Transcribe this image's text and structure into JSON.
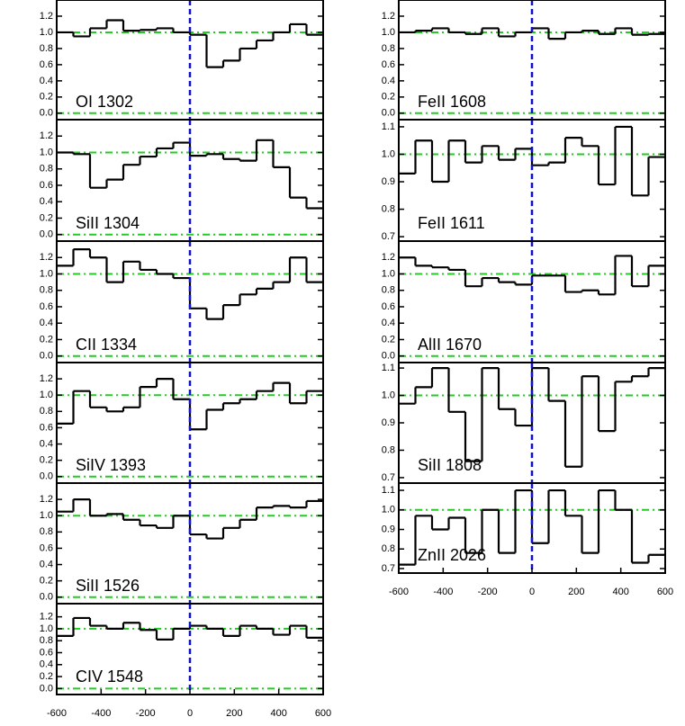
{
  "chart_data": [
    {
      "type": "step",
      "title": "OI 1302",
      "x": [
        -600,
        -525,
        -450,
        -375,
        -300,
        -225,
        -150,
        -75,
        0,
        75,
        150,
        225,
        300,
        375,
        450,
        525
      ],
      "values": [
        1.0,
        0.95,
        1.05,
        1.15,
        1.02,
        1.03,
        1.05,
        1.0,
        0.97,
        0.57,
        0.65,
        0.8,
        0.9,
        1.0,
        1.1,
        0.97
      ],
      "color": "#000000",
      "xlim": [
        -600,
        600
      ],
      "ylim": [
        -0.08,
        1.4
      ],
      "yticks": [
        {
          "value": 0,
          "label": "0.0"
        },
        0.2,
        0.4,
        0.6,
        0.8,
        {
          "value": 1,
          "label": "1.0"
        },
        1.2
      ],
      "reference_y": [
        0,
        1
      ],
      "reference_x": [
        0
      ],
      "reference_y_color": "#22cc22",
      "reference_x_color": "#1010cc"
    },
    {
      "type": "step",
      "title": "SiII 1304",
      "x": [
        -600,
        -525,
        -450,
        -375,
        -300,
        -225,
        -150,
        -75,
        0,
        75,
        150,
        225,
        300,
        375,
        450,
        525
      ],
      "values": [
        1.0,
        0.98,
        0.57,
        0.67,
        0.85,
        0.95,
        1.05,
        1.12,
        0.96,
        0.98,
        0.92,
        0.9,
        1.15,
        0.82,
        0.45,
        0.32
      ],
      "color": "#000000",
      "xlim": [
        -600,
        600
      ],
      "ylim": [
        -0.08,
        1.4
      ],
      "yticks": [
        {
          "value": 0,
          "label": "0.0"
        },
        0.2,
        0.4,
        0.6,
        0.8,
        {
          "value": 1,
          "label": "1.0"
        },
        1.2
      ],
      "reference_y": [
        0,
        1
      ],
      "reference_x": [
        0
      ],
      "reference_y_color": "#22cc22",
      "reference_x_color": "#1010cc"
    },
    {
      "type": "step",
      "title": "CII 1334",
      "x": [
        -600,
        -525,
        -450,
        -375,
        -300,
        -225,
        -150,
        -75,
        0,
        75,
        150,
        225,
        300,
        375,
        450,
        525
      ],
      "values": [
        1.1,
        1.3,
        1.2,
        0.9,
        1.15,
        1.05,
        1.0,
        0.95,
        0.58,
        0.45,
        0.62,
        0.75,
        0.82,
        0.9,
        1.2,
        0.9
      ],
      "color": "#000000",
      "xlim": [
        -600,
        600
      ],
      "ylim": [
        -0.08,
        1.4
      ],
      "yticks": [
        {
          "value": 0,
          "label": "0.0"
        },
        0.2,
        0.4,
        0.6,
        0.8,
        {
          "value": 1,
          "label": "1.0"
        },
        1.2
      ],
      "reference_y": [
        0,
        1
      ],
      "reference_x": [
        0
      ],
      "reference_y_color": "#22cc22",
      "reference_x_color": "#1010cc"
    },
    {
      "type": "step",
      "title": "SiIV 1393",
      "x": [
        -600,
        -525,
        -450,
        -375,
        -300,
        -225,
        -150,
        -75,
        0,
        75,
        150,
        225,
        300,
        375,
        450,
        525
      ],
      "values": [
        0.65,
        1.05,
        0.85,
        0.8,
        0.85,
        1.1,
        1.2,
        0.95,
        0.58,
        0.82,
        0.9,
        0.95,
        1.05,
        1.15,
        0.9,
        1.05
      ],
      "color": "#000000",
      "xlim": [
        -600,
        600
      ],
      "ylim": [
        -0.08,
        1.4
      ],
      "yticks": [
        {
          "value": 0,
          "label": "0.0"
        },
        0.2,
        0.4,
        0.6,
        0.8,
        {
          "value": 1,
          "label": "1.0"
        },
        1.2
      ],
      "reference_y": [
        0,
        1
      ],
      "reference_x": [
        0
      ],
      "reference_y_color": "#22cc22",
      "reference_x_color": "#1010cc"
    },
    {
      "type": "step",
      "title": "SiII 1526",
      "x": [
        -600,
        -525,
        -450,
        -375,
        -300,
        -225,
        -150,
        -75,
        0,
        75,
        150,
        225,
        300,
        375,
        450,
        525
      ],
      "values": [
        1.05,
        1.2,
        1.0,
        1.02,
        0.95,
        0.88,
        0.85,
        1.0,
        0.77,
        0.72,
        0.85,
        0.95,
        1.1,
        1.12,
        1.1,
        1.18
      ],
      "color": "#000000",
      "xlim": [
        -600,
        600
      ],
      "ylim": [
        -0.08,
        1.4
      ],
      "yticks": [
        {
          "value": 0,
          "label": "0.0"
        },
        0.2,
        0.4,
        0.6,
        0.8,
        {
          "value": 1,
          "label": "1.0"
        },
        1.2
      ],
      "reference_y": [
        0,
        1
      ],
      "reference_x": [
        0
      ],
      "reference_y_color": "#22cc22",
      "reference_x_color": "#1010cc"
    },
    {
      "type": "step",
      "title": "CIV 1548",
      "x": [
        -600,
        -525,
        -450,
        -375,
        -300,
        -225,
        -150,
        -75,
        0,
        75,
        150,
        225,
        300,
        375,
        450,
        525
      ],
      "values": [
        0.88,
        1.18,
        1.05,
        1.0,
        1.1,
        0.98,
        0.82,
        1.0,
        1.05,
        1.0,
        0.88,
        1.05,
        1.0,
        0.9,
        1.05,
        0.85
      ],
      "color": "#000000",
      "xlim": [
        -600,
        600
      ],
      "ylim": [
        -0.1,
        1.42
      ],
      "yticks": [
        {
          "value": 0,
          "label": "0.0"
        },
        0.2,
        0.4,
        0.6,
        0.8,
        {
          "value": 1,
          "label": "1.0"
        },
        1.2
      ],
      "xticks": [
        -600,
        -400,
        -200,
        0,
        200,
        400,
        600
      ],
      "reference_y": [
        0,
        1
      ],
      "reference_x": [
        0
      ],
      "reference_y_color": "#22cc22",
      "reference_x_color": "#1010cc"
    },
    {
      "type": "step",
      "title": "FeII 1608",
      "x": [
        -600,
        -525,
        -450,
        -375,
        -300,
        -225,
        -150,
        -75,
        0,
        75,
        150,
        225,
        300,
        375,
        450,
        525
      ],
      "values": [
        1.0,
        1.02,
        1.05,
        1.0,
        0.98,
        1.05,
        0.95,
        1.0,
        1.05,
        0.92,
        1.0,
        1.02,
        0.98,
        1.05,
        0.97,
        0.98
      ],
      "color": "#000000",
      "xlim": [
        -600,
        600
      ],
      "ylim": [
        -0.08,
        1.4
      ],
      "yticks": [
        {
          "value": 0,
          "label": "0.0"
        },
        0.2,
        0.4,
        0.6,
        0.8,
        {
          "value": 1,
          "label": "1.0"
        },
        1.2
      ],
      "reference_y": [
        0,
        1
      ],
      "reference_x": [
        0
      ],
      "reference_y_color": "#22cc22",
      "reference_x_color": "#1010cc"
    },
    {
      "type": "step",
      "title": "FeII 1611",
      "x": [
        -600,
        -525,
        -450,
        -375,
        -300,
        -225,
        -150,
        -75,
        0,
        75,
        150,
        225,
        300,
        375,
        450,
        525
      ],
      "values": [
        0.93,
        1.05,
        0.9,
        1.05,
        0.97,
        1.03,
        0.98,
        1.02,
        0.96,
        0.97,
        1.06,
        1.03,
        0.89,
        1.1,
        0.85,
        0.99
      ],
      "color": "#000000",
      "xlim": [
        -600,
        600
      ],
      "ylim": [
        0.684,
        1.126
      ],
      "yticks": [
        0.7,
        0.8,
        0.9,
        {
          "value": 1,
          "label": "1.0"
        },
        1.1
      ],
      "reference_y": [
        1
      ],
      "reference_x": [
        0
      ],
      "reference_y_color": "#22cc22",
      "reference_x_color": "#1010cc"
    },
    {
      "type": "step",
      "title": "AlII 1670",
      "x": [
        -600,
        -525,
        -450,
        -375,
        -300,
        -225,
        -150,
        -75,
        0,
        75,
        150,
        225,
        300,
        375,
        450,
        525
      ],
      "values": [
        1.2,
        1.1,
        1.08,
        1.05,
        0.85,
        0.95,
        0.9,
        0.87,
        0.98,
        0.98,
        0.78,
        0.8,
        0.75,
        1.22,
        0.85,
        1.1
      ],
      "color": "#000000",
      "xlim": [
        -600,
        600
      ],
      "ylim": [
        -0.08,
        1.4
      ],
      "yticks": [
        {
          "value": 0,
          "label": "0.0"
        },
        0.2,
        0.4,
        0.6,
        0.8,
        {
          "value": 1,
          "label": "1.0"
        },
        1.2
      ],
      "reference_y": [
        0,
        1
      ],
      "reference_x": [
        0
      ],
      "reference_y_color": "#22cc22",
      "reference_x_color": "#1010cc"
    },
    {
      "type": "step",
      "title": "SiII 1808",
      "x": [
        -600,
        -525,
        -450,
        -375,
        -300,
        -225,
        -150,
        -75,
        0,
        75,
        150,
        225,
        300,
        375,
        450,
        525
      ],
      "values": [
        0.97,
        1.03,
        1.1,
        0.94,
        0.76,
        1.1,
        0.95,
        0.89,
        1.1,
        0.98,
        0.74,
        1.07,
        0.87,
        1.05,
        1.07,
        1.1
      ],
      "color": "#000000",
      "xlim": [
        -600,
        600
      ],
      "ylim": [
        0.68,
        1.12
      ],
      "yticks": [
        0.7,
        0.8,
        0.9,
        {
          "value": 1,
          "label": "1.0"
        },
        1.1
      ],
      "reference_y": [
        1
      ],
      "reference_x": [
        0
      ],
      "reference_y_color": "#22cc22",
      "reference_x_color": "#1010cc"
    },
    {
      "type": "step",
      "title": "ZnII 2026",
      "x": [
        -600,
        -525,
        -450,
        -375,
        -300,
        -225,
        -150,
        -75,
        0,
        75,
        150,
        225,
        300,
        375,
        450,
        525
      ],
      "values": [
        0.72,
        0.97,
        0.9,
        0.96,
        0.78,
        1.0,
        0.78,
        1.1,
        0.83,
        1.1,
        0.97,
        0.78,
        1.1,
        1.0,
        0.73,
        0.77
      ],
      "color": "#000000",
      "xlim": [
        -600,
        600
      ],
      "ylim": [
        0.677,
        1.137
      ],
      "yticks": [
        0.7,
        0.8,
        0.9,
        {
          "value": 1,
          "label": "1.0"
        },
        1.1
      ],
      "xticks": [
        -600,
        -400,
        -200,
        0,
        200,
        400,
        600
      ],
      "reference_y": [
        1
      ],
      "reference_x": [
        0
      ],
      "reference_y_color": "#22cc22",
      "reference_x_color": "#1010cc"
    }
  ]
}
